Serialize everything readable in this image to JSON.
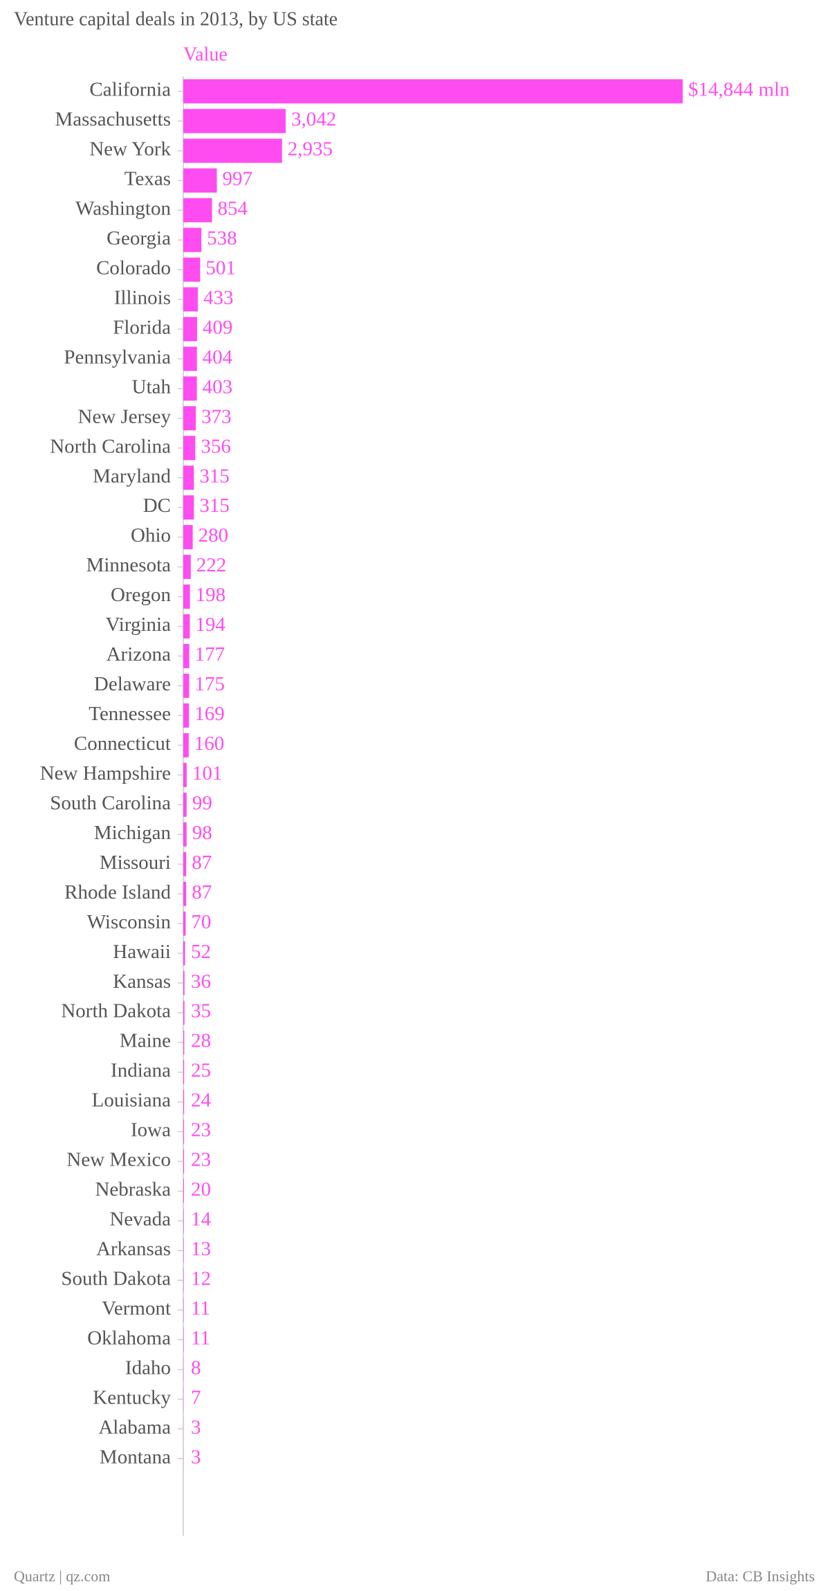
{
  "chart_data": {
    "type": "bar",
    "title": "Venture capital deals in 2013, by US state",
    "orientation": "horizontal",
    "categories": [
      "California",
      "Massachusetts",
      "New York",
      "Texas",
      "Washington",
      "Georgia",
      "Colorado",
      "Illinois",
      "Florida",
      "Pennsylvania",
      "Utah",
      "New Jersey",
      "North Carolina",
      "Maryland",
      "DC",
      "Ohio",
      "Minnesota",
      "Oregon",
      "Virginia",
      "Arizona",
      "Delaware",
      "Tennessee",
      "Connecticut",
      "New Hampshire",
      "South Carolina",
      "Michigan",
      "Missouri",
      "Rhode Island",
      "Wisconsin",
      "Hawaii",
      "Kansas",
      "North Dakota",
      "Maine",
      "Indiana",
      "Louisiana",
      "Iowa",
      "New Mexico",
      "Nebraska",
      "Nevada",
      "Arkansas",
      "South Dakota",
      "Vermont",
      "Oklahoma",
      "Idaho",
      "Kentucky",
      "Alabama",
      "Montana"
    ],
    "series": [
      {
        "name": "Value",
        "color": "#ff4cf0",
        "values": [
          14844,
          3042,
          2935,
          997,
          854,
          538,
          501,
          433,
          409,
          404,
          403,
          373,
          356,
          315,
          315,
          280,
          222,
          198,
          194,
          177,
          175,
          169,
          160,
          101,
          99,
          98,
          87,
          87,
          70,
          52,
          36,
          35,
          28,
          25,
          24,
          23,
          23,
          20,
          14,
          13,
          12,
          11,
          11,
          8,
          7,
          3,
          3
        ],
        "value_labels": [
          "$14,844 mln",
          "3,042",
          "2,935",
          "997",
          "854",
          "538",
          "501",
          "433",
          "409",
          "404",
          "403",
          "373",
          "356",
          "315",
          "315",
          "280",
          "222",
          "198",
          "194",
          "177",
          "175",
          "169",
          "160",
          "101",
          "99",
          "98",
          "87",
          "87",
          "70",
          "52",
          "36",
          "35",
          "28",
          "25",
          "24",
          "23",
          "23",
          "20",
          "14",
          "13",
          "12",
          "11",
          "11",
          "8",
          "7",
          "3",
          "3"
        ]
      }
    ],
    "source_left": "Quartz | qz.com",
    "source_right": "Data: CB Insights"
  }
}
